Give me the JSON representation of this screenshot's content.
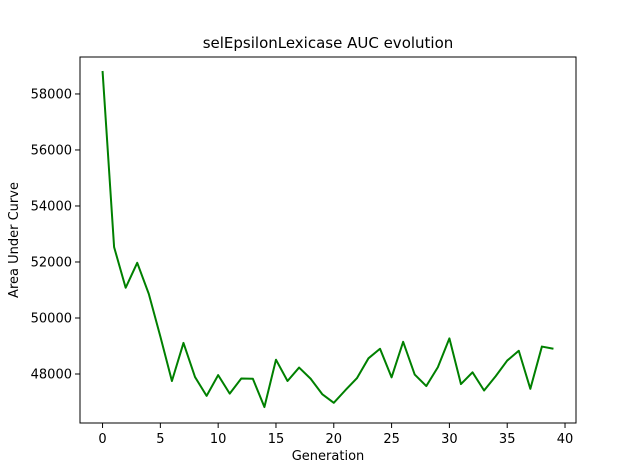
{
  "chart_data": {
    "type": "line",
    "title": "selEpsilonLexicase AUC evolution",
    "xlabel": "Generation",
    "ylabel": "Area Under Curve",
    "xlim": [
      -1.95,
      40.95
    ],
    "ylim": [
      46250,
      59320
    ],
    "grid": false,
    "xticks": [
      0,
      5,
      10,
      15,
      20,
      25,
      30,
      35,
      40
    ],
    "yticks": [
      48000,
      50000,
      52000,
      54000,
      56000,
      58000
    ],
    "series": [
      {
        "color": "#008000",
        "x": [
          0,
          1,
          2,
          3,
          4,
          5,
          6,
          7,
          8,
          9,
          10,
          11,
          12,
          13,
          14,
          15,
          16,
          17,
          18,
          19,
          20,
          21,
          22,
          23,
          24,
          25,
          26,
          27,
          28,
          29,
          30,
          31,
          32,
          33,
          34,
          35,
          36,
          37,
          38,
          39
        ],
        "y": [
          58820,
          52530,
          51080,
          51970,
          50860,
          49340,
          47750,
          49110,
          47890,
          47220,
          47960,
          47300,
          47840,
          47830,
          46820,
          48510,
          47750,
          48230,
          47830,
          47280,
          46970,
          47420,
          47850,
          48560,
          48900,
          47880,
          49150,
          47980,
          47570,
          48240,
          49270,
          47640,
          48060,
          47410,
          47920,
          48480,
          48830,
          47470,
          48980,
          48900
        ]
      }
    ]
  }
}
